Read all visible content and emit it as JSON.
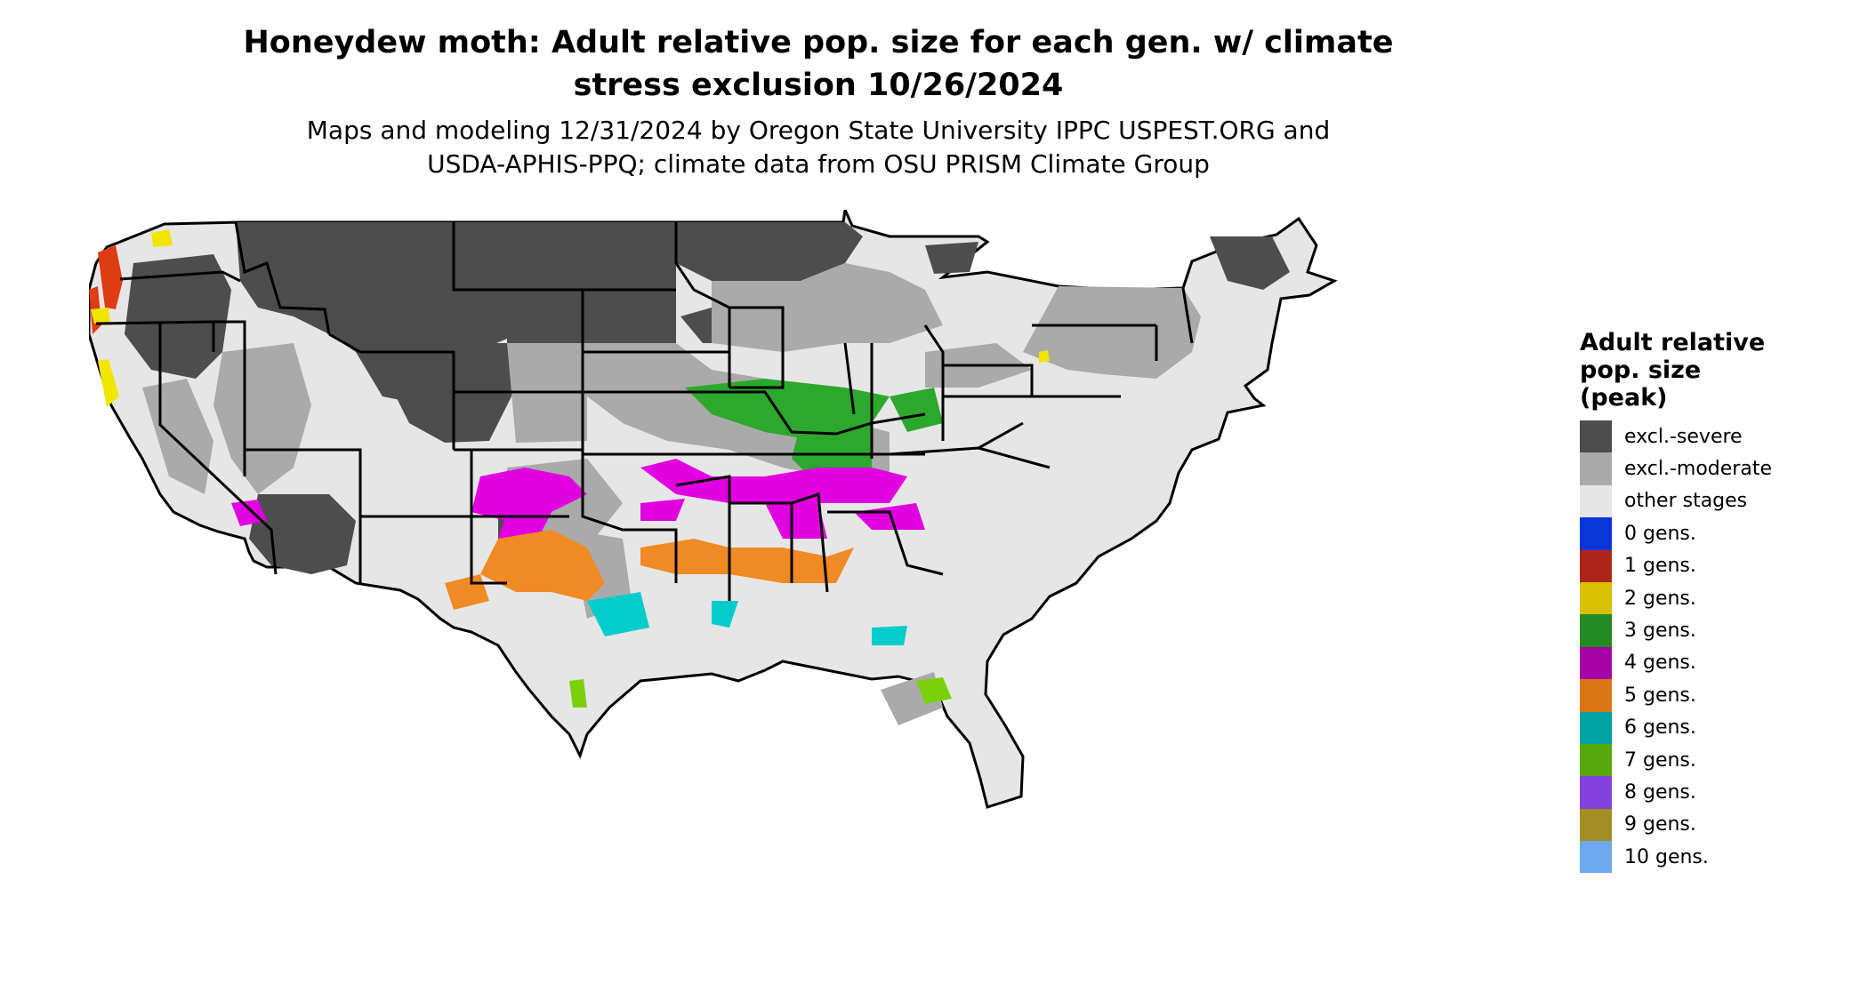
{
  "title": {
    "line1": "Honeydew moth: Adult relative pop. size for each gen. w/ climate",
    "line2": "stress exclusion 10/26/2024"
  },
  "subtitle": {
    "line1": "Maps and modeling 12/31/2024 by Oregon State University IPPC USPEST.ORG and",
    "line2": "USDA-APHIS-PPQ; climate data from OSU PRISM Climate Group"
  },
  "legend": {
    "title_lines": [
      "Adult relative",
      "pop. size",
      "(peak)"
    ],
    "items": [
      {
        "label": "excl.-severe",
        "color": "#4d4d4d"
      },
      {
        "label": "excl.-moderate",
        "color": "#aaaaaa"
      },
      {
        "label": "other stages",
        "color": "#e6e6e6"
      },
      {
        "label": "0 gens.",
        "color": "#0a36d9"
      },
      {
        "label": "1 gens.",
        "color": "#ad2418"
      },
      {
        "label": "2 gens.",
        "color": "#d9c000"
      },
      {
        "label": "3 gens.",
        "color": "#238b23"
      },
      {
        "label": "4 gens.",
        "color": "#a600a6"
      },
      {
        "label": "5 gens.",
        "color": "#db7516"
      },
      {
        "label": "6 gens.",
        "color": "#00a3a3"
      },
      {
        "label": "7 gens.",
        "color": "#56a80e"
      },
      {
        "label": "8 gens.",
        "color": "#8440dc"
      },
      {
        "label": "9 gens.",
        "color": "#a38e23"
      },
      {
        "label": "10 gens.",
        "color": "#6ea8ef"
      }
    ]
  },
  "map": {
    "region": "conterminous United States",
    "state_boundary_color": "#000000",
    "ocean_color": "#ffffff"
  }
}
